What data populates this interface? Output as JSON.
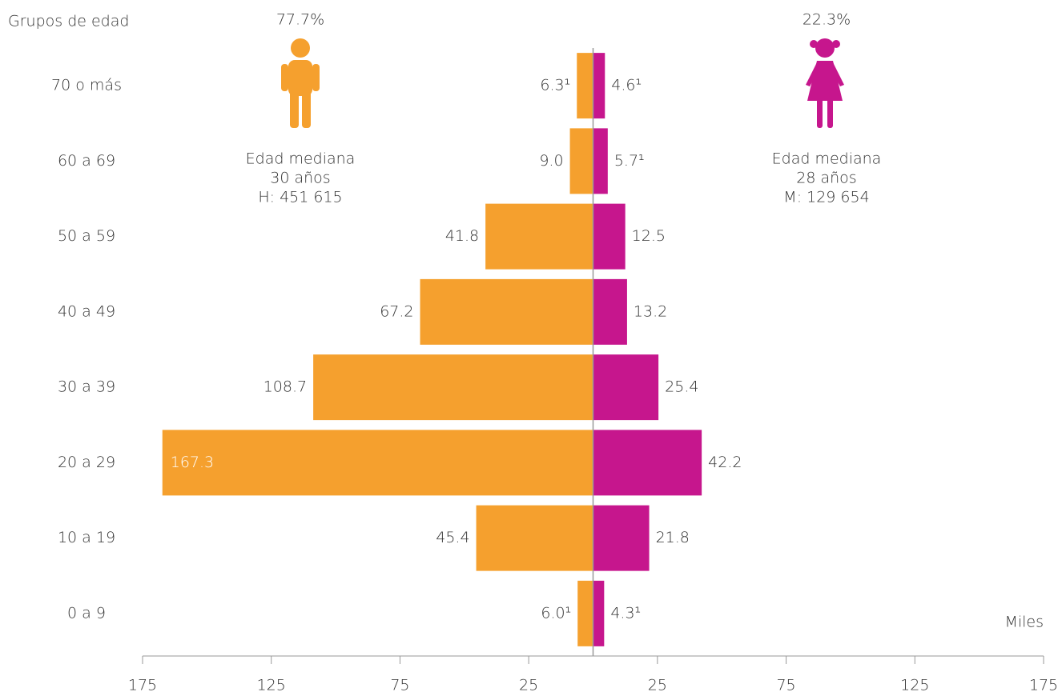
{
  "chart_data": {
    "type": "pyramid",
    "y_label": "Grupos de edad",
    "x_unit": "Miles",
    "categories": [
      "70 o más",
      "60 a 69",
      "50 a 59",
      "40 a 49",
      "30 a 39",
      "20 a 29",
      "10 a 19",
      "0 a 9"
    ],
    "series": [
      {
        "color": "#f5a02e",
        "side": "left",
        "values": [
          6.3,
          9.0,
          41.8,
          67.2,
          108.7,
          167.3,
          45.4,
          6.0
        ],
        "value_labels": [
          "6.3¹",
          "9.0",
          "41.8",
          "67.2",
          "108.7",
          "167.3",
          "45.4",
          "6.0¹"
        ],
        "share": "77.7%",
        "notes": [
          "Edad mediana",
          "30 años",
          "H: 451 615"
        ]
      },
      {
        "color": "#c6168d",
        "side": "right",
        "values": [
          4.6,
          5.7,
          12.5,
          13.2,
          25.4,
          42.2,
          21.8,
          4.3
        ],
        "value_labels": [
          "4.6¹",
          "5.7¹",
          "12.5",
          "13.2",
          "25.4",
          "42.2",
          "21.8",
          "4.3¹"
        ],
        "share": "22.3%",
        "notes": [
          "Edad mediana",
          "28 años",
          "M: 129 654"
        ]
      }
    ],
    "xlim": [
      -175,
      175
    ],
    "xticks": [
      {
        "value": -175,
        "label": "175"
      },
      {
        "value": -125,
        "label": "125"
      },
      {
        "value": -75,
        "label": "75"
      },
      {
        "value": -25,
        "label": "25"
      },
      25,
      75,
      125,
      175
    ]
  }
}
